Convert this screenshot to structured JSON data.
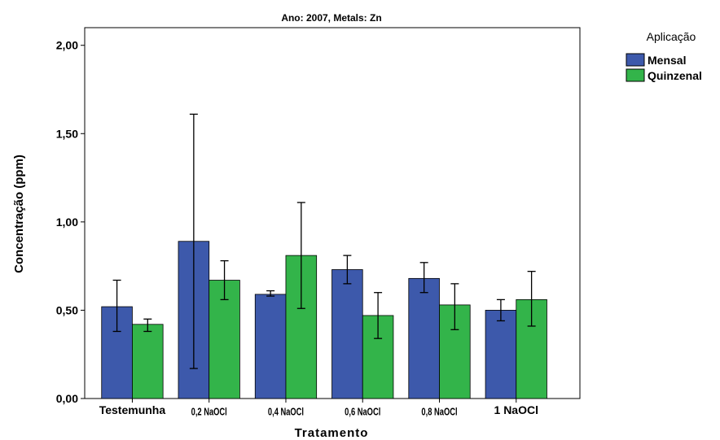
{
  "chart_data": {
    "type": "bar",
    "title": "Ano: 2007, Metals: Zn",
    "xlabel": "Tratamento",
    "ylabel": "Concentração (ppm)",
    "ylim": [
      0,
      2.1
    ],
    "yticks": [
      "0,00",
      "0,50",
      "1,00",
      "1,50",
      "2,00"
    ],
    "categories": [
      "Testemunha",
      "0,2 NaOCl",
      "0,4 NaOCl",
      "0,6 NaOCl",
      "0,8 NaOCl",
      "1 NaOCl"
    ],
    "legend": {
      "title": "Aplicação",
      "position": "right"
    },
    "series": [
      {
        "name": "Mensal",
        "color": "#3d59ab",
        "values": [
          0.52,
          0.89,
          0.59,
          0.73,
          0.68,
          0.5
        ],
        "error_low": [
          0.38,
          0.17,
          0.58,
          0.65,
          0.6,
          0.44
        ],
        "error_high": [
          0.67,
          1.61,
          0.61,
          0.81,
          0.77,
          0.56
        ]
      },
      {
        "name": "Quinzenal",
        "color": "#33b44a",
        "values": [
          0.42,
          0.67,
          0.81,
          0.47,
          0.53,
          0.56
        ],
        "error_low": [
          0.38,
          0.56,
          0.51,
          0.34,
          0.39,
          0.41
        ],
        "error_high": [
          0.45,
          0.78,
          1.11,
          0.6,
          0.65,
          0.72
        ]
      }
    ],
    "grid": false
  }
}
